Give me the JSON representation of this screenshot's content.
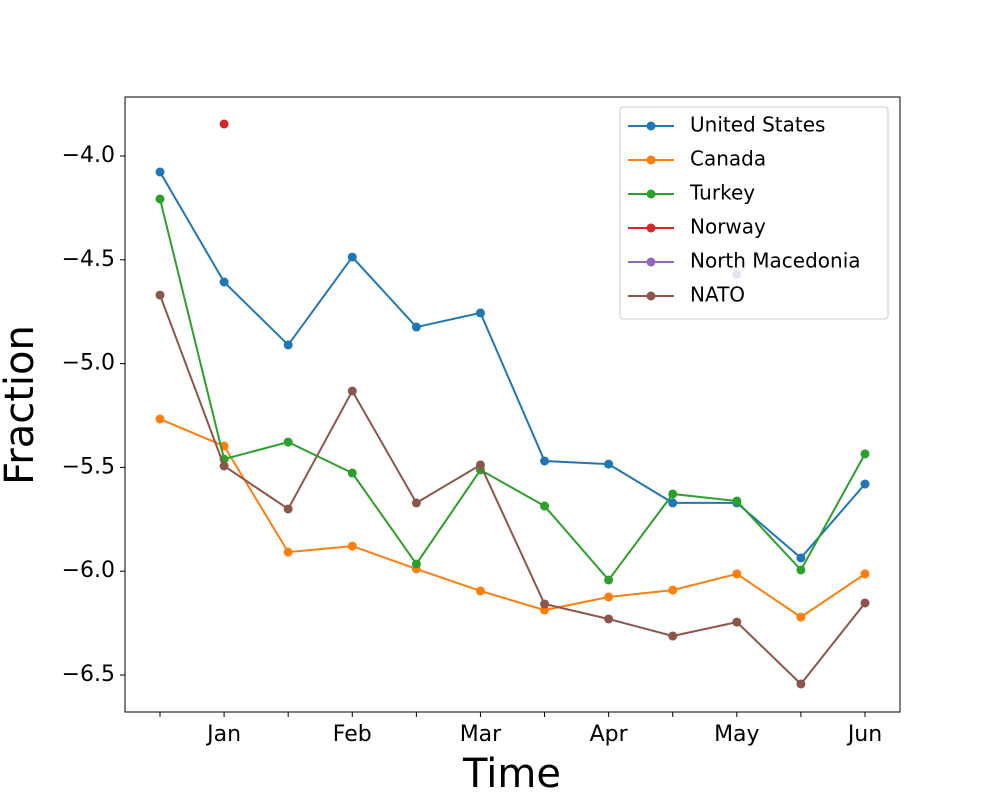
{
  "chart_data": {
    "type": "line",
    "x_label": "Time",
    "y_label": "Fraction",
    "categories": [
      null,
      "Jan",
      null,
      "Feb",
      null,
      "Mar",
      null,
      "Apr",
      null,
      "May",
      null,
      "Jun"
    ],
    "ylim": [
      -6.678,
      -3.716
    ],
    "yticks": [
      {
        "value": -6.5,
        "label": "−6.5"
      },
      {
        "value": -6.0,
        "label": "−6.0"
      },
      {
        "value": -5.5,
        "label": "−5.5"
      },
      {
        "value": -5.0,
        "label": "−5.0"
      },
      {
        "value": -4.5,
        "label": "−4.5"
      },
      {
        "value": -4.0,
        "label": "−4.0"
      }
    ],
    "legend": "upper right",
    "series": [
      {
        "name": "United States",
        "color": "#1f77b4",
        "values": [
          -4.077,
          -4.607,
          -4.91,
          -4.487,
          -4.824,
          -4.756,
          -5.469,
          -5.484,
          -5.671,
          -5.671,
          -5.936,
          -5.58
        ]
      },
      {
        "name": "Canada",
        "color": "#ff7f0e",
        "values": [
          -5.267,
          -5.397,
          -5.908,
          -5.879,
          -5.989,
          -6.095,
          -6.187,
          -6.124,
          -6.091,
          -6.013,
          -6.221,
          -6.013
        ]
      },
      {
        "name": "Turkey",
        "color": "#2ca02c",
        "values": [
          -4.207,
          -5.46,
          -5.378,
          -5.527,
          -5.965,
          -5.512,
          -5.686,
          -6.042,
          -5.628,
          -5.662,
          -5.994,
          -5.435
        ]
      },
      {
        "name": "Norway",
        "color": "#d62728",
        "values": [
          null,
          -3.846,
          null,
          null,
          null,
          null,
          null,
          null,
          null,
          null,
          null,
          null
        ]
      },
      {
        "name": "North Macedonia",
        "color": "#9467bd",
        "values": [
          null,
          null,
          null,
          null,
          null,
          null,
          null,
          null,
          null,
          -4.57,
          null,
          null
        ]
      },
      {
        "name": "NATO",
        "color": "#8c564b",
        "values": [
          -4.67,
          -5.493,
          -5.7,
          -5.132,
          -5.671,
          -5.488,
          -6.158,
          -6.23,
          -6.312,
          -6.245,
          -6.543,
          -6.153
        ]
      }
    ]
  }
}
